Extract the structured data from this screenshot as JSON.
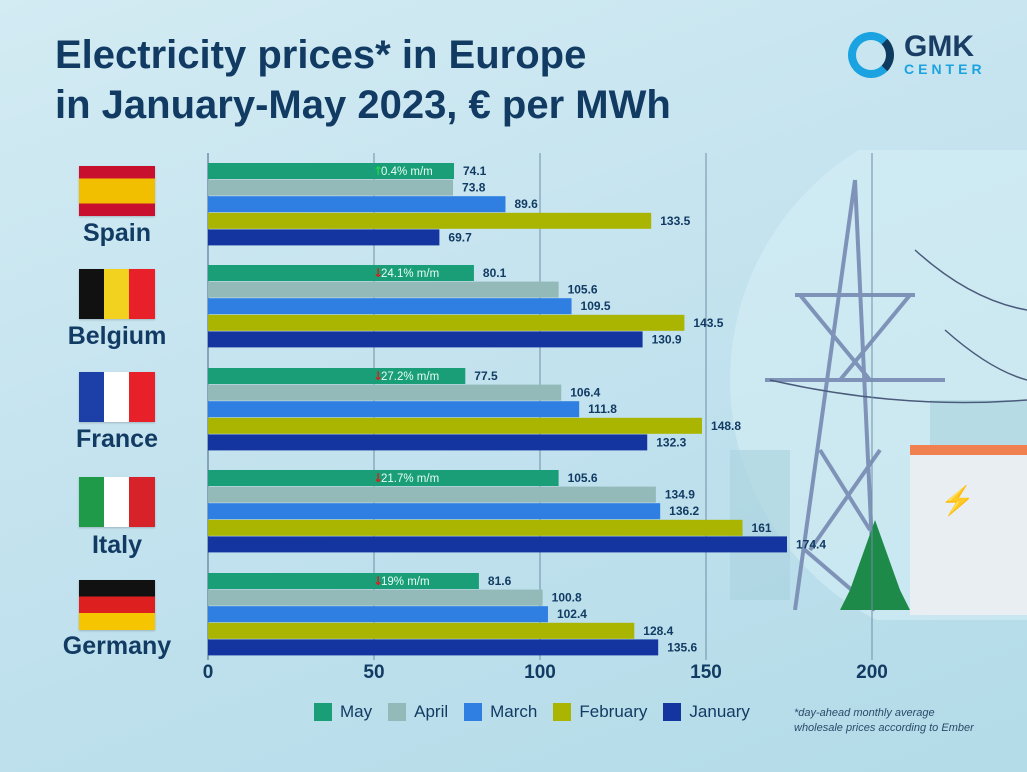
{
  "title": [
    "Electricity prices* in Europe",
    "in January-May 2023, € per MWh"
  ],
  "logo": {
    "name": "GMK",
    "sub": "CENTER"
  },
  "footnote": [
    "*day-ahead monthly average",
    "wholesale prices according to Ember"
  ],
  "chart_data": {
    "type": "bar",
    "orientation": "horizontal",
    "categories": [
      "Spain",
      "Belgium",
      "France",
      "Italy",
      "Germany"
    ],
    "series": [
      {
        "name": "May",
        "color": "#1a9e77",
        "values": [
          74.1,
          80.1,
          77.5,
          105.6,
          81.6
        ]
      },
      {
        "name": "April",
        "color": "#94b9b9",
        "values": [
          73.8,
          105.6,
          106.4,
          134.9,
          100.8
        ]
      },
      {
        "name": "March",
        "color": "#2f7fe3",
        "values": [
          89.6,
          109.5,
          111.8,
          136.2,
          102.4
        ]
      },
      {
        "name": "February",
        "color": "#a9b500",
        "values": [
          133.5,
          143.5,
          148.8,
          161,
          128.4
        ]
      },
      {
        "name": "January",
        "color": "#14359f",
        "values": [
          69.7,
          130.9,
          132.3,
          174.4,
          135.6
        ]
      }
    ],
    "value_labels": [
      [
        "74.1",
        "73.8",
        "89.6",
        "133.5",
        "69.7"
      ],
      [
        "80.1",
        "105.6",
        "109.5",
        "143.5",
        "130.9"
      ],
      [
        "77.5",
        "106.4",
        "111.8",
        "148.8",
        "132.3"
      ],
      [
        "105.6",
        "134.9",
        "136.2",
        "161",
        "174.4"
      ],
      [
        "81.6",
        "100.8",
        "102.4",
        "128.4",
        "135.6"
      ]
    ],
    "annotations": [
      {
        "text": "0.4% m/m",
        "direction": "up",
        "color": "#1fd34a"
      },
      {
        "text": "24.1% m/m",
        "direction": "down",
        "color": "#d42020"
      },
      {
        "text": "27.2% m/m",
        "direction": "down",
        "color": "#d42020"
      },
      {
        "text": "21.7% m/m",
        "direction": "down",
        "color": "#d42020"
      },
      {
        "text": "19% m/m",
        "direction": "down",
        "color": "#d42020"
      }
    ],
    "xlim": [
      0,
      200
    ],
    "xticks": [
      "0",
      "50",
      "100",
      "150",
      "200"
    ],
    "grid": true,
    "legend": "bottom",
    "legend_entries": [
      "May",
      "April",
      "March",
      "February",
      "January"
    ]
  }
}
